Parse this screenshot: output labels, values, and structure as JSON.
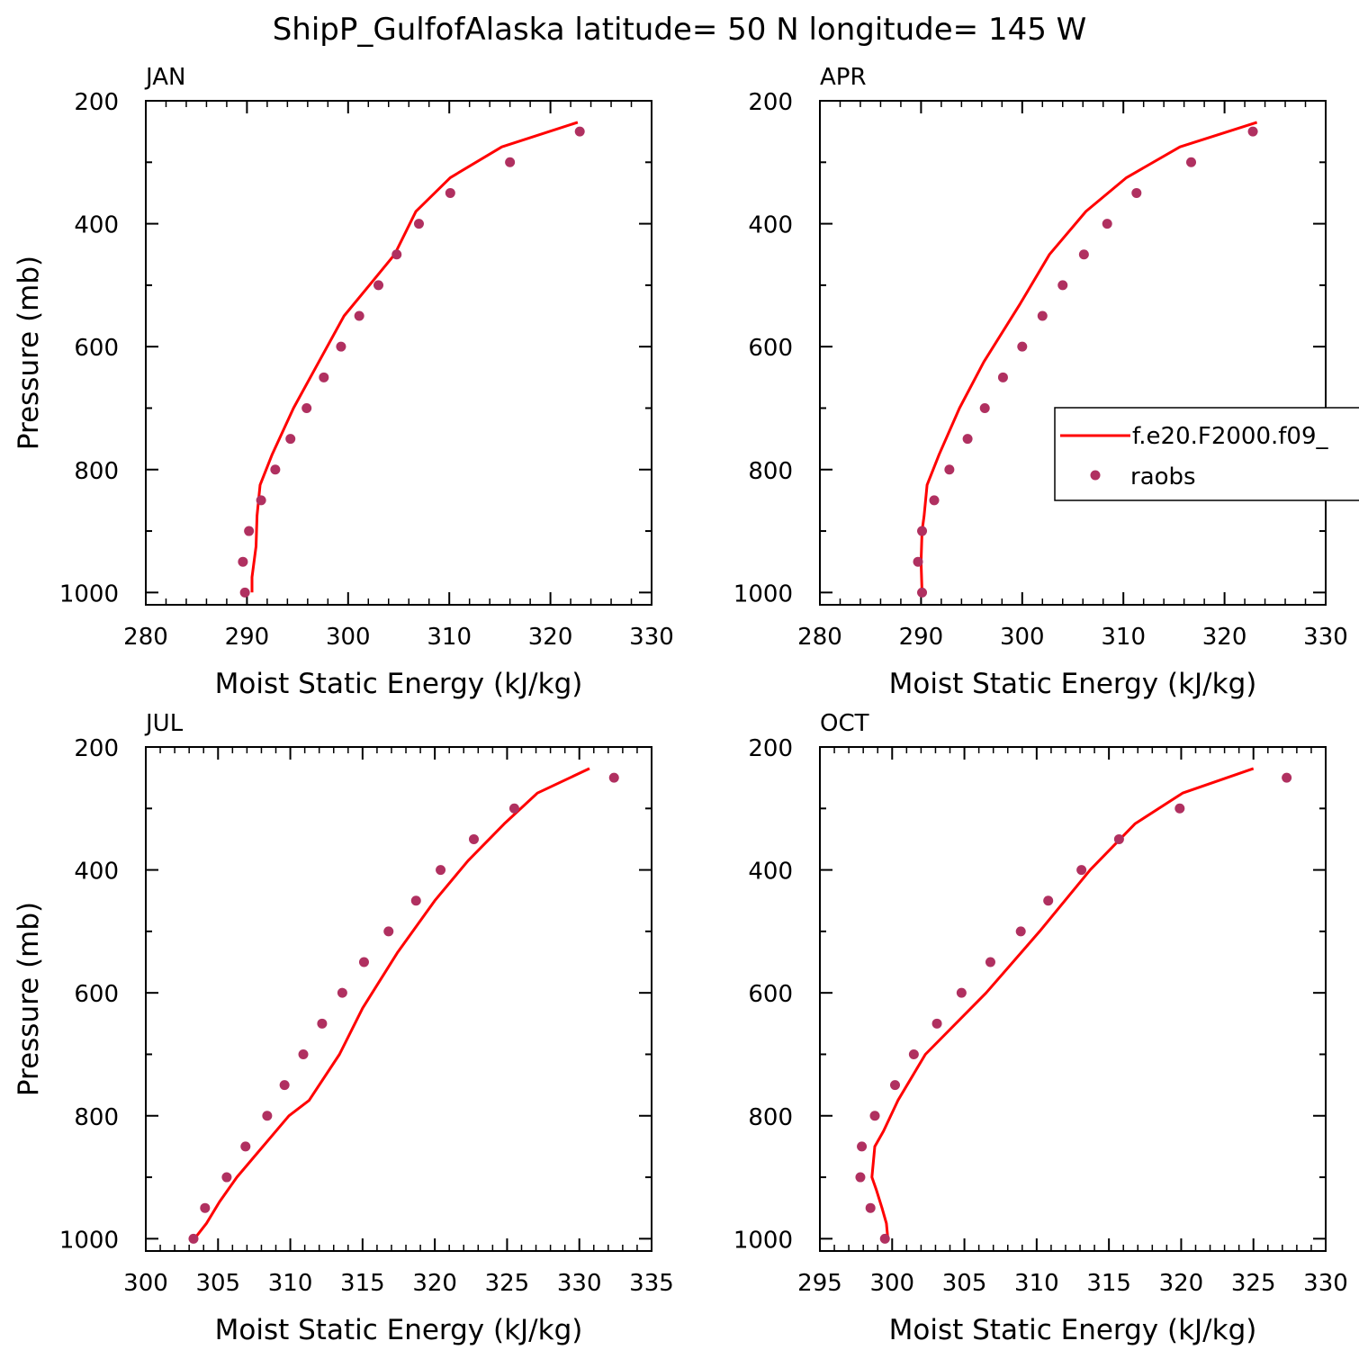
{
  "title": "ShipP_GulfofAlaska  latitude= 50 N longitude= 145 W",
  "colors": {
    "model": "#ff0000",
    "obs": "#b03060",
    "axis": "#000000"
  },
  "legend": {
    "model_label": "f.e20.F2000.f09_",
    "obs_label": "raobs"
  },
  "chart_data": [
    {
      "panel": "JAN",
      "type": "line",
      "xlabel": "Moist Static Energy (kJ/kg)",
      "ylabel": "Pressure (mb)",
      "xlim": [
        280,
        330
      ],
      "ylim": [
        1000,
        200
      ],
      "xticks": [
        "280",
        "290",
        "300",
        "310",
        "320",
        "330"
      ],
      "yticks": [
        "200",
        "400",
        "600",
        "800",
        "1000"
      ],
      "series": [
        {
          "kind": "line",
          "x": [
            290.5,
            290.5,
            290.9,
            291.0,
            291.3,
            292.5,
            294.6,
            297.1,
            299.6,
            302.1,
            304.6,
            306.7,
            310.1,
            315.2,
            322.7
          ],
          "y": [
            1000,
            975,
            925,
            875,
            825,
            775,
            700,
            625,
            550,
            500,
            450,
            380,
            325,
            275,
            235
          ]
        },
        {
          "kind": "scatter",
          "x": [
            289.8,
            289.6,
            290.2,
            291.4,
            292.8,
            294.3,
            295.9,
            297.6,
            299.3,
            301.1,
            303.0,
            304.8,
            307.0,
            310.1,
            316.0,
            322.9
          ],
          "y": [
            1000,
            950,
            900,
            850,
            800,
            750,
            700,
            650,
            600,
            550,
            500,
            450,
            400,
            350,
            300,
            250
          ]
        }
      ]
    },
    {
      "panel": "APR",
      "type": "line",
      "xlabel": "Moist Static Energy (kJ/kg)",
      "ylabel": "",
      "xlim": [
        280,
        330
      ],
      "ylim": [
        1000,
        200
      ],
      "xticks": [
        "280",
        "290",
        "300",
        "310",
        "320",
        "330"
      ],
      "yticks": [
        "200",
        "400",
        "600",
        "800",
        "1000"
      ],
      "series": [
        {
          "kind": "line",
          "x": [
            290.1,
            290.0,
            290.1,
            290.3,
            290.6,
            291.8,
            293.8,
            296.2,
            299.8,
            302.7,
            306.3,
            310.3,
            315.6,
            323.2
          ],
          "y": [
            1000,
            950,
            900,
            875,
            825,
            775,
            700,
            625,
            530,
            450,
            380,
            325,
            275,
            235
          ]
        },
        {
          "kind": "scatter",
          "x": [
            290.1,
            289.7,
            290.1,
            291.3,
            292.8,
            294.6,
            296.3,
            298.1,
            300.0,
            302.0,
            304.0,
            306.1,
            308.4,
            311.3,
            316.7,
            322.8
          ],
          "y": [
            1000,
            950,
            900,
            850,
            800,
            750,
            700,
            650,
            600,
            550,
            500,
            450,
            400,
            350,
            300,
            250
          ]
        }
      ]
    },
    {
      "panel": "JUL",
      "type": "line",
      "xlabel": "Moist Static Energy (kJ/kg)",
      "ylabel": "Pressure (mb)",
      "xlim": [
        300,
        335
      ],
      "ylim": [
        1000,
        200
      ],
      "xticks": [
        "300",
        "305",
        "310",
        "315",
        "320",
        "325",
        "330",
        "335"
      ],
      "yticks": [
        "200",
        "400",
        "600",
        "800",
        "1000"
      ],
      "series": [
        {
          "kind": "line",
          "x": [
            303.2,
            304.2,
            305.1,
            306.3,
            308.1,
            309.9,
            311.3,
            313.4,
            315.0,
            317.4,
            320.0,
            322.3,
            324.8,
            327.1,
            330.7
          ],
          "y": [
            1005,
            975,
            940,
            900,
            850,
            800,
            775,
            700,
            625,
            535,
            450,
            385,
            325,
            275,
            235
          ]
        },
        {
          "kind": "scatter",
          "x": [
            303.3,
            304.1,
            305.6,
            306.9,
            308.4,
            309.6,
            310.9,
            312.2,
            313.6,
            315.1,
            316.8,
            318.7,
            320.4,
            322.7,
            325.5,
            332.4
          ],
          "y": [
            1000,
            950,
            900,
            850,
            800,
            750,
            700,
            650,
            600,
            550,
            500,
            450,
            400,
            350,
            300,
            250
          ]
        }
      ]
    },
    {
      "panel": "OCT",
      "type": "line",
      "xlabel": "Moist Static Energy (kJ/kg)",
      "ylabel": "",
      "xlim": [
        295,
        330
      ],
      "ylim": [
        1000,
        200
      ],
      "xticks": [
        "295",
        "300",
        "305",
        "310",
        "315",
        "320",
        "325",
        "330"
      ],
      "yticks": [
        "200",
        "400",
        "600",
        "800",
        "1000"
      ],
      "series": [
        {
          "kind": "line",
          "x": [
            299.7,
            299.6,
            299.3,
            298.9,
            298.6,
            298.8,
            299.4,
            300.4,
            302.3,
            306.5,
            310.2,
            313.7,
            316.8,
            320.1,
            325.0
          ],
          "y": [
            1000,
            975,
            950,
            920,
            900,
            850,
            825,
            775,
            700,
            600,
            500,
            400,
            325,
            275,
            235
          ]
        },
        {
          "kind": "scatter",
          "x": [
            299.5,
            298.5,
            297.8,
            297.9,
            298.8,
            300.2,
            301.5,
            303.1,
            304.8,
            306.8,
            308.9,
            310.8,
            313.1,
            315.7,
            319.9,
            327.3
          ],
          "y": [
            1000,
            950,
            900,
            850,
            800,
            750,
            700,
            650,
            600,
            550,
            500,
            450,
            400,
            350,
            300,
            250
          ]
        }
      ]
    }
  ]
}
